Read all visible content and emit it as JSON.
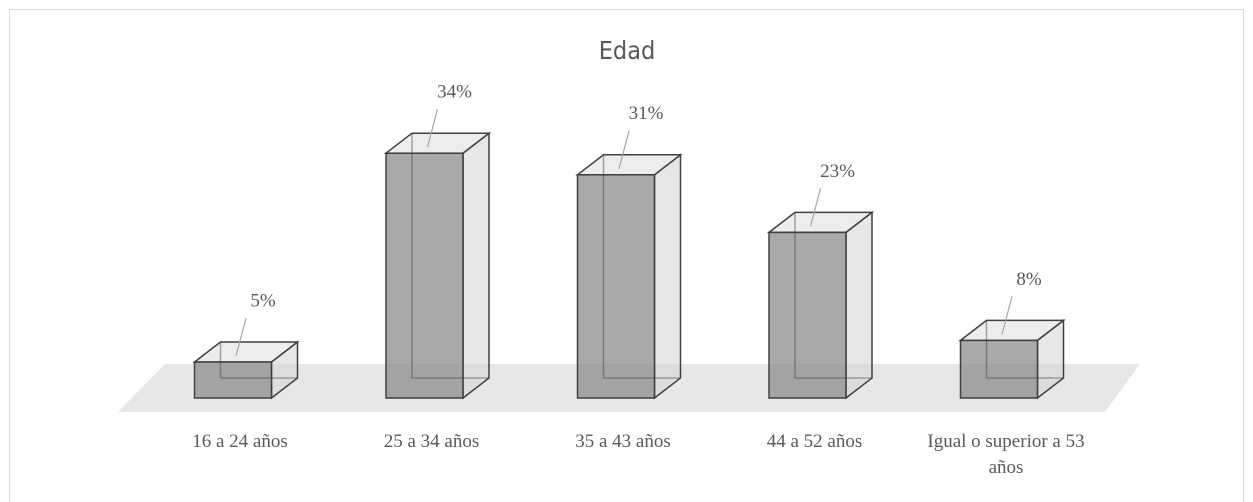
{
  "chart_data": {
    "type": "bar3d",
    "title": "Edad",
    "categories": [
      "16 a 24 años",
      "25 a 34 años",
      "35 a 43 años",
      "44 a 52 años",
      "Igual o superior a 53 años"
    ],
    "values": [
      5,
      34,
      31,
      23,
      8
    ],
    "value_labels": [
      "5%",
      "34%",
      "31%",
      "23%",
      "8%"
    ],
    "color": "#8c8c8c"
  }
}
